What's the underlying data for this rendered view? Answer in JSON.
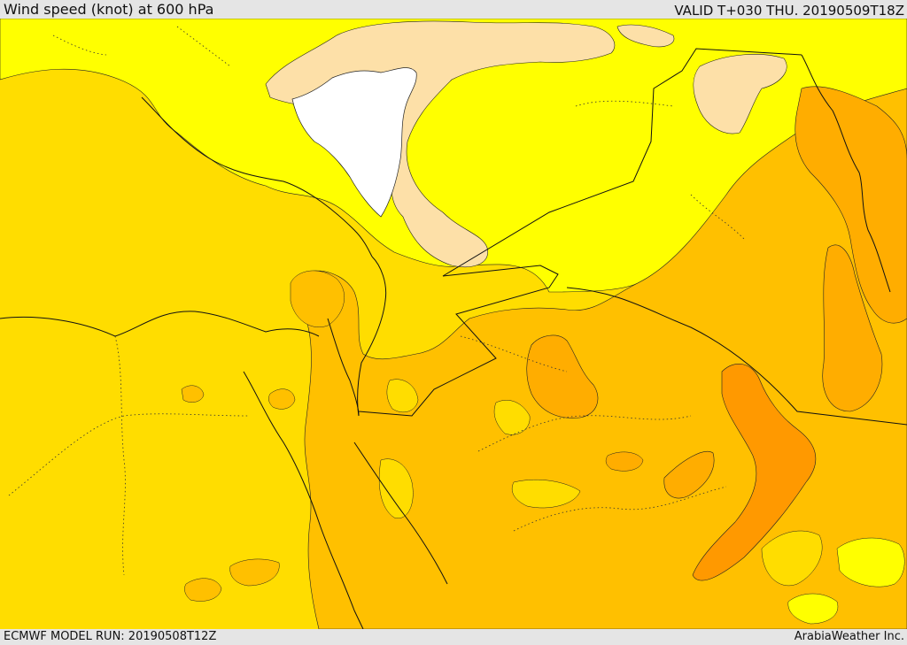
{
  "header": {
    "title": "Wind speed (knot) at 600 hPa",
    "valid_time": "VALID T+030 THU. 20190509T18Z"
  },
  "footer": {
    "model_run": "ECMWF MODEL RUN: 20190508T12Z",
    "credit": "ArabiaWeather Inc."
  },
  "map": {
    "field": "wind speed",
    "level": "600 hPa",
    "colors": {
      "calm_white": "#ffffff",
      "light_tan": "#fde0a8",
      "bright_yellow": "#ffff00",
      "gold": "#ffdd00",
      "amber": "#ffc000",
      "light_orange": "#ffad00",
      "orange": "#ff9900",
      "border_line": "#111111"
    }
  }
}
